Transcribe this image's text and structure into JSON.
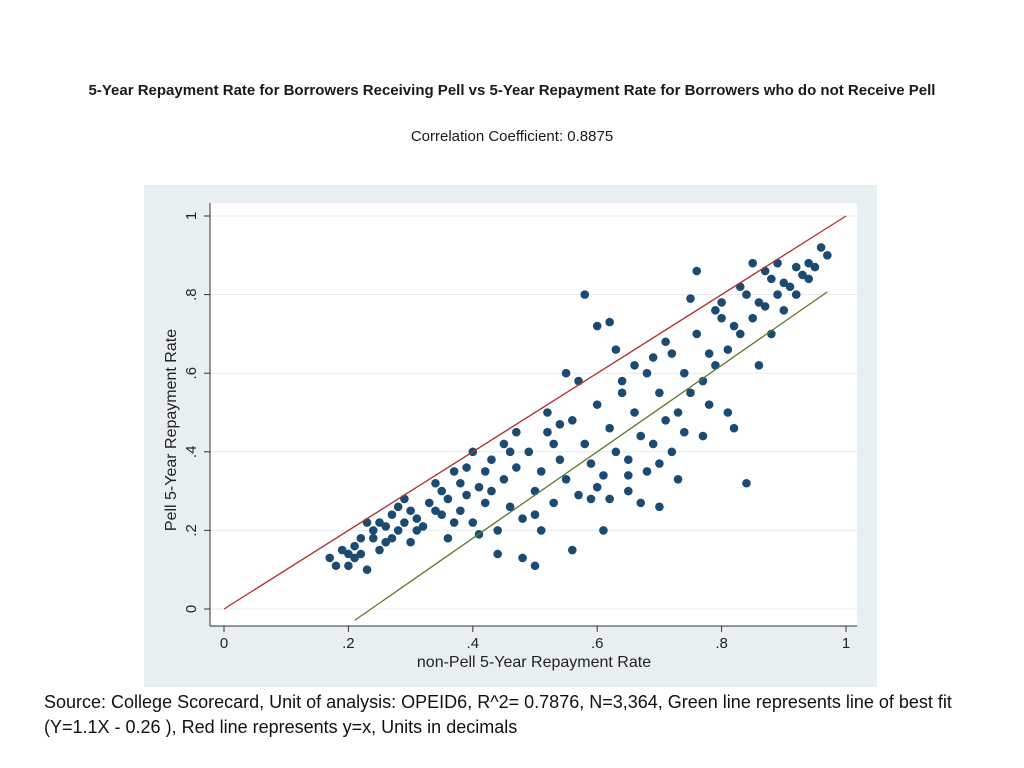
{
  "chart_data": {
    "type": "scatter",
    "title": "5-Year Repayment Rate for Borrowers Receiving Pell vs 5-Year Repayment Rate for Borrowers who do not Receive Pell",
    "subtitle": "Correlation Coefficient: 0.8875",
    "xlabel": "non-Pell 5-Year Repayment Rate",
    "ylabel": "Pell 5-Year Repayment Rate",
    "xlim": [
      0,
      1
    ],
    "ylim": [
      0,
      1
    ],
    "xticks": [
      0,
      0.2,
      0.4,
      0.6,
      0.8,
      1
    ],
    "xtick_labels": [
      "0",
      ".2",
      ".4",
      ".6",
      ".8",
      "1"
    ],
    "yticks": [
      0,
      0.2,
      0.4,
      0.6,
      0.8,
      1
    ],
    "ytick_labels": [
      "0",
      ".2",
      ".4",
      ".6",
      ".8",
      "1"
    ],
    "grid": true,
    "series": [
      {
        "kind": "points",
        "color": "#1b4b72",
        "points": [
          [
            0.17,
            0.13
          ],
          [
            0.19,
            0.15
          ],
          [
            0.2,
            0.11
          ],
          [
            0.21,
            0.16
          ],
          [
            0.22,
            0.14
          ],
          [
            0.23,
            0.1
          ],
          [
            0.24,
            0.18
          ],
          [
            0.25,
            0.15
          ],
          [
            0.26,
            0.21
          ],
          [
            0.27,
            0.24
          ],
          [
            0.28,
            0.2
          ],
          [
            0.29,
            0.28
          ],
          [
            0.3,
            0.17
          ],
          [
            0.31,
            0.23
          ],
          [
            0.33,
            0.27
          ],
          [
            0.34,
            0.32
          ],
          [
            0.35,
            0.3
          ],
          [
            0.36,
            0.18
          ],
          [
            0.37,
            0.35
          ],
          [
            0.38,
            0.25
          ],
          [
            0.39,
            0.29
          ],
          [
            0.4,
            0.22
          ],
          [
            0.41,
            0.31
          ],
          [
            0.42,
            0.27
          ],
          [
            0.43,
            0.38
          ],
          [
            0.44,
            0.2
          ],
          [
            0.45,
            0.33
          ],
          [
            0.46,
            0.26
          ],
          [
            0.47,
            0.36
          ],
          [
            0.48,
            0.23
          ],
          [
            0.49,
            0.4
          ],
          [
            0.5,
            0.3
          ],
          [
            0.51,
            0.35
          ],
          [
            0.52,
            0.45
          ],
          [
            0.53,
            0.27
          ],
          [
            0.54,
            0.38
          ],
          [
            0.55,
            0.33
          ],
          [
            0.56,
            0.48
          ],
          [
            0.57,
            0.29
          ],
          [
            0.58,
            0.42
          ],
          [
            0.59,
            0.37
          ],
          [
            0.6,
            0.52
          ],
          [
            0.61,
            0.34
          ],
          [
            0.62,
            0.46
          ],
          [
            0.63,
            0.4
          ],
          [
            0.64,
            0.55
          ],
          [
            0.65,
            0.38
          ],
          [
            0.66,
            0.5
          ],
          [
            0.67,
            0.44
          ],
          [
            0.68,
            0.6
          ],
          [
            0.69,
            0.42
          ],
          [
            0.7,
            0.55
          ],
          [
            0.71,
            0.48
          ],
          [
            0.72,
            0.65
          ],
          [
            0.73,
            0.5
          ],
          [
            0.74,
            0.6
          ],
          [
            0.75,
            0.55
          ],
          [
            0.76,
            0.7
          ],
          [
            0.77,
            0.58
          ],
          [
            0.78,
            0.65
          ],
          [
            0.79,
            0.62
          ],
          [
            0.8,
            0.74
          ],
          [
            0.81,
            0.66
          ],
          [
            0.82,
            0.72
          ],
          [
            0.83,
            0.7
          ],
          [
            0.84,
            0.8
          ],
          [
            0.85,
            0.74
          ],
          [
            0.86,
            0.78
          ],
          [
            0.87,
            0.77
          ],
          [
            0.88,
            0.84
          ],
          [
            0.89,
            0.8
          ],
          [
            0.9,
            0.83
          ],
          [
            0.91,
            0.82
          ],
          [
            0.92,
            0.87
          ],
          [
            0.93,
            0.85
          ],
          [
            0.94,
            0.88
          ],
          [
            0.95,
            0.87
          ],
          [
            0.96,
            0.92
          ],
          [
            0.97,
            0.9
          ],
          [
            0.6,
            0.72
          ],
          [
            0.55,
            0.6
          ],
          [
            0.58,
            0.8
          ],
          [
            0.62,
            0.73
          ],
          [
            0.75,
            0.79
          ],
          [
            0.8,
            0.78
          ],
          [
            0.84,
            0.32
          ],
          [
            0.81,
            0.5
          ],
          [
            0.73,
            0.33
          ],
          [
            0.7,
            0.26
          ],
          [
            0.52,
            0.5
          ],
          [
            0.57,
            0.58
          ],
          [
            0.63,
            0.66
          ],
          [
            0.76,
            0.86
          ],
          [
            0.85,
            0.88
          ],
          [
            0.9,
            0.76
          ],
          [
            0.82,
            0.46
          ],
          [
            0.77,
            0.44
          ],
          [
            0.61,
            0.2
          ],
          [
            0.56,
            0.15
          ],
          [
            0.5,
            0.11
          ],
          [
            0.48,
            0.13
          ],
          [
            0.44,
            0.14
          ],
          [
            0.41,
            0.19
          ],
          [
            0.37,
            0.22
          ],
          [
            0.35,
            0.24
          ],
          [
            0.32,
            0.21
          ],
          [
            0.3,
            0.25
          ],
          [
            0.28,
            0.26
          ],
          [
            0.65,
            0.3
          ],
          [
            0.67,
            0.27
          ],
          [
            0.72,
            0.4
          ],
          [
            0.74,
            0.45
          ],
          [
            0.78,
            0.52
          ],
          [
            0.86,
            0.62
          ],
          [
            0.88,
            0.7
          ],
          [
            0.92,
            0.8
          ],
          [
            0.94,
            0.84
          ],
          [
            0.53,
            0.42
          ],
          [
            0.54,
            0.47
          ],
          [
            0.46,
            0.4
          ],
          [
            0.47,
            0.45
          ],
          [
            0.45,
            0.42
          ],
          [
            0.64,
            0.58
          ],
          [
            0.66,
            0.62
          ],
          [
            0.69,
            0.64
          ],
          [
            0.71,
            0.68
          ],
          [
            0.79,
            0.76
          ],
          [
            0.83,
            0.82
          ],
          [
            0.87,
            0.86
          ],
          [
            0.89,
            0.88
          ],
          [
            0.68,
            0.35
          ],
          [
            0.7,
            0.37
          ],
          [
            0.59,
            0.28
          ],
          [
            0.6,
            0.31
          ],
          [
            0.62,
            0.28
          ],
          [
            0.65,
            0.34
          ],
          [
            0.5,
            0.24
          ],
          [
            0.51,
            0.2
          ],
          [
            0.43,
            0.3
          ],
          [
            0.42,
            0.35
          ],
          [
            0.38,
            0.32
          ],
          [
            0.39,
            0.36
          ],
          [
            0.4,
            0.4
          ],
          [
            0.36,
            0.28
          ],
          [
            0.34,
            0.25
          ],
          [
            0.31,
            0.2
          ],
          [
            0.29,
            0.22
          ],
          [
            0.27,
            0.18
          ],
          [
            0.26,
            0.17
          ],
          [
            0.25,
            0.22
          ],
          [
            0.24,
            0.2
          ],
          [
            0.23,
            0.22
          ],
          [
            0.22,
            0.18
          ],
          [
            0.21,
            0.13
          ],
          [
            0.2,
            0.14
          ],
          [
            0.18,
            0.11
          ]
        ]
      },
      {
        "kind": "line",
        "color": "#b03030",
        "slope": 1,
        "intercept": 0,
        "x_range": [
          0,
          1
        ]
      },
      {
        "kind": "line",
        "color": "#5a7a2a",
        "slope": 1.1,
        "intercept": -0.26,
        "x_range": [
          0.21,
          0.97
        ]
      }
    ]
  },
  "source_note": "Source: College Scorecard, Unit of analysis: OPEID6, R^2= 0.7876, N=3,364, Green line represents line of best fit (Y=1.1X - 0.26 ), Red line represents y=x, Units in decimals"
}
